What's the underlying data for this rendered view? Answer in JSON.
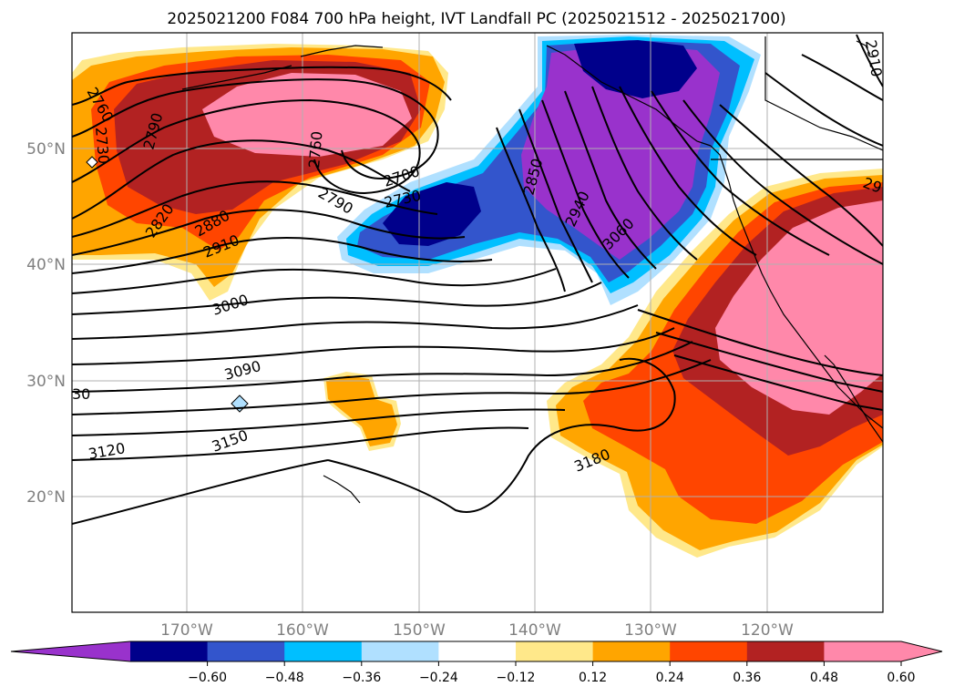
{
  "title": "2025021200 F084 700 hPa height, IVT Landfall PC (2025021512 - 2025021700)",
  "lat_labels": [
    "50°N",
    "40°N",
    "30°N",
    "20°N"
  ],
  "lon_labels": [
    "170°W",
    "160°W",
    "150°W",
    "140°W",
    "130°W",
    "120°W"
  ],
  "contour_labels": [
    "2760",
    "2730",
    "2790",
    "2820",
    "2880",
    "2910",
    "3000",
    "3090",
    "3120",
    "3150",
    "3180",
    "2760",
    "2700",
    "2730",
    "2790",
    "2850",
    "2940",
    "3060",
    "2910",
    "29",
    "30"
  ],
  "colorbar": {
    "ticks": [
      "−0.60",
      "−0.48",
      "−0.36",
      "−0.24",
      "−0.12",
      "0.12",
      "0.24",
      "0.36",
      "0.48",
      "0.60"
    ],
    "colors": [
      "#9932cc",
      "#00008b",
      "#3355cc",
      "#00bfff",
      "#b0e0ff",
      "#ffffff",
      "#ffe88a",
      "#ffa500",
      "#ff4500",
      "#b22222",
      "#ff88aa",
      "#ff88aa"
    ]
  }
}
